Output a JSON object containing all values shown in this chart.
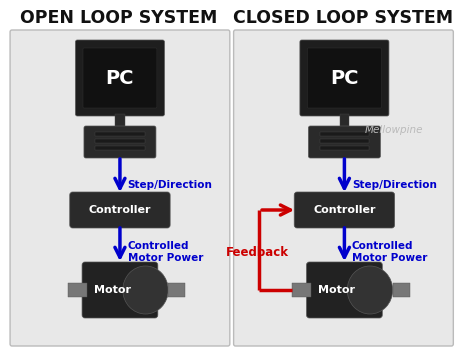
{
  "bg_color": "#ffffff",
  "panel_bg": "#e8e8e8",
  "panel_edge": "#bbbbbb",
  "title_left": "OPEN LOOP SYSTEM",
  "title_right": "CLOSED LOOP SYSTEM",
  "title_fontsize": 12.5,
  "title_color": "#111111",
  "box_color": "#2a2a2a",
  "box_text_color": "#ffffff",
  "arrow_blue": "#0000cc",
  "arrow_red": "#cc0000",
  "label_blue": "#0000cc",
  "label_red": "#cc0000",
  "watermark": "Mellowpine",
  "watermark_color": "#bbbbbb",
  "monitor_dark": "#1e1e1e",
  "monitor_mid": "#2a2a2a",
  "monitor_screen": "#111111",
  "motor_body": "#222222",
  "motor_plate": "#333333",
  "shaft_color": "#777777"
}
